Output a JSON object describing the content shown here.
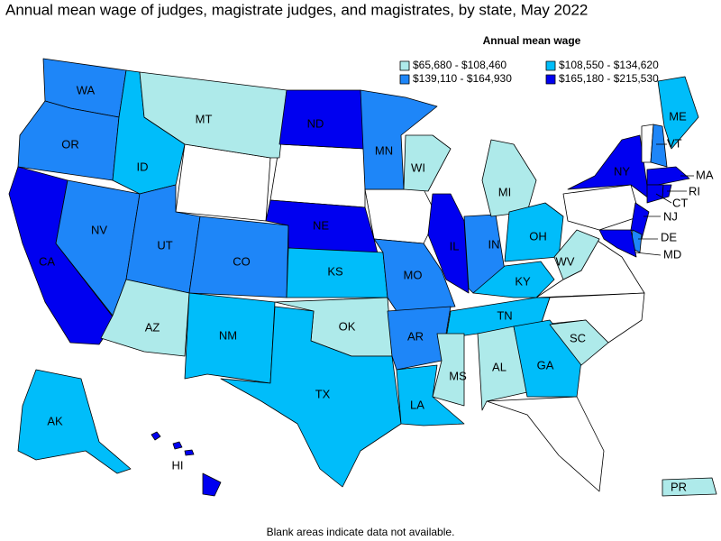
{
  "title": "Annual mean wage of judges, magistrate judges, and magistrates, by state, May 2022",
  "legend": {
    "title": "Annual mean wage",
    "items": [
      {
        "label": "$65,680 - $108,460",
        "color": "#aeeaea"
      },
      {
        "label": "$108,550 - $134,620",
        "color": "#00bdfa"
      },
      {
        "label": "$139,110 - $164,930",
        "color": "#1e86f8"
      },
      {
        "label": "$165,180 - $215,530",
        "color": "#0000f0"
      }
    ]
  },
  "states": [
    {
      "label": "WA",
      "category": 2
    },
    {
      "label": "OR",
      "category": 2
    },
    {
      "label": "CA",
      "category": 3
    },
    {
      "label": "NV",
      "category": 2
    },
    {
      "label": "ID",
      "category": 1
    },
    {
      "label": "MT",
      "category": 0
    },
    {
      "label": "UT",
      "category": 2
    },
    {
      "label": "AZ",
      "category": 0
    },
    {
      "label": "CO",
      "category": 2
    },
    {
      "label": "NM",
      "category": 1
    },
    {
      "label": "ND",
      "category": 3
    },
    {
      "label": "NE",
      "category": 3
    },
    {
      "label": "KS",
      "category": 1
    },
    {
      "label": "OK",
      "category": 0
    },
    {
      "label": "TX",
      "category": 1
    },
    {
      "label": "MN",
      "category": 2
    },
    {
      "label": "MO",
      "category": 2
    },
    {
      "label": "AR",
      "category": 2
    },
    {
      "label": "LA",
      "category": 1
    },
    {
      "label": "WI",
      "category": 0
    },
    {
      "label": "IL",
      "category": 3
    },
    {
      "label": "IN",
      "category": 2
    },
    {
      "label": "MI",
      "category": 0
    },
    {
      "label": "OH",
      "category": 1
    },
    {
      "label": "KY",
      "category": 1
    },
    {
      "label": "TN",
      "category": 1
    },
    {
      "label": "MS",
      "category": 0
    },
    {
      "label": "AL",
      "category": 0
    },
    {
      "label": "GA",
      "category": 1
    },
    {
      "label": "SC",
      "category": 0
    },
    {
      "label": "WV",
      "category": 0
    },
    {
      "label": "NY",
      "category": 3
    },
    {
      "label": "NJ",
      "category": 3
    },
    {
      "label": "DE",
      "category": 2
    },
    {
      "label": "MD",
      "category": 3
    },
    {
      "label": "VT",
      "category": null
    },
    {
      "label": null,
      "category": 2
    },
    {
      "label": "ME",
      "category": 1
    },
    {
      "label": "MA",
      "category": 3
    },
    {
      "label": "CT",
      "category": 3
    },
    {
      "label": "RI",
      "category": 3
    },
    {
      "label": "AK",
      "category": 1
    },
    {
      "label": "HI",
      "category": 3
    },
    {
      "label": "PR",
      "category": 0
    }
  ],
  "footnote": "Blank areas indicate data not available."
}
